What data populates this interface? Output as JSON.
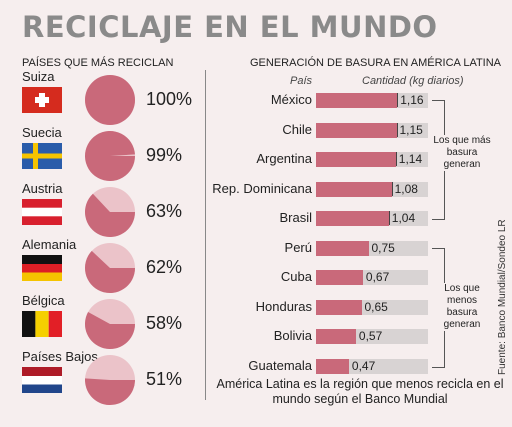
{
  "title": "RECICLAJE EN EL MUNDO",
  "left_section_title": "PAÍSES QUE MÁS RECICLAN",
  "right_section_title": "GENERACIÓN DE BASURA EN AMÉRICA LATINA",
  "right_headers": {
    "country": "País",
    "quantity": "Cantidad (kg diarios)"
  },
  "colors": {
    "accent": "#c9697a",
    "light": "#ebc3c9",
    "bar_bg": "#d8d3d3"
  },
  "chart_data": [
    {
      "type": "pie",
      "title": "PAÍSES QUE MÁS RECICLAN",
      "unit": "%",
      "countries": [
        {
          "name": "Suiza",
          "value": 100,
          "label": "100%",
          "flag": "switzerland"
        },
        {
          "name": "Suecia",
          "value": 99,
          "label": "99%",
          "flag": "sweden"
        },
        {
          "name": "Austria",
          "value": 63,
          "label": "63%",
          "flag": "austria"
        },
        {
          "name": "Alemania",
          "value": 62,
          "label": "62%",
          "flag": "germany"
        },
        {
          "name": "Bélgica",
          "value": 58,
          "label": "58%",
          "flag": "belgium"
        },
        {
          "name": "Países Bajos",
          "value": 51,
          "label": "51%",
          "flag": "netherlands"
        }
      ]
    },
    {
      "type": "bar",
      "title": "GENERACIÓN DE BASURA EN AMÉRICA LATINA",
      "xlabel": "Cantidad (kg diarios)",
      "ylabel": "País",
      "orientation": "horizontal",
      "xlim": [
        0,
        1.6
      ],
      "categories": [
        "México",
        "Chile",
        "Argentina",
        "Rep. Dominicana",
        "Brasil",
        "Perú",
        "Cuba",
        "Honduras",
        "Bolivia",
        "Guatemala"
      ],
      "values": [
        1.16,
        1.15,
        1.14,
        1.08,
        1.04,
        0.75,
        0.67,
        0.65,
        0.57,
        0.47
      ],
      "value_labels": [
        "1,16",
        "1,15",
        "1,14",
        "1,08",
        "1,04",
        "0,75",
        "0,67",
        "0,65",
        "0,57",
        "0,47"
      ],
      "groups": [
        {
          "label": "Los que más basura generan",
          "from": 0,
          "to": 4
        },
        {
          "label": "Los que menos basura generan",
          "from": 5,
          "to": 9
        }
      ]
    }
  ],
  "footnote": "América Latina es la región que menos recicla en el mundo según el Banco Mundial",
  "source": "Fuente: Banco Mundial/Sondeo LR"
}
